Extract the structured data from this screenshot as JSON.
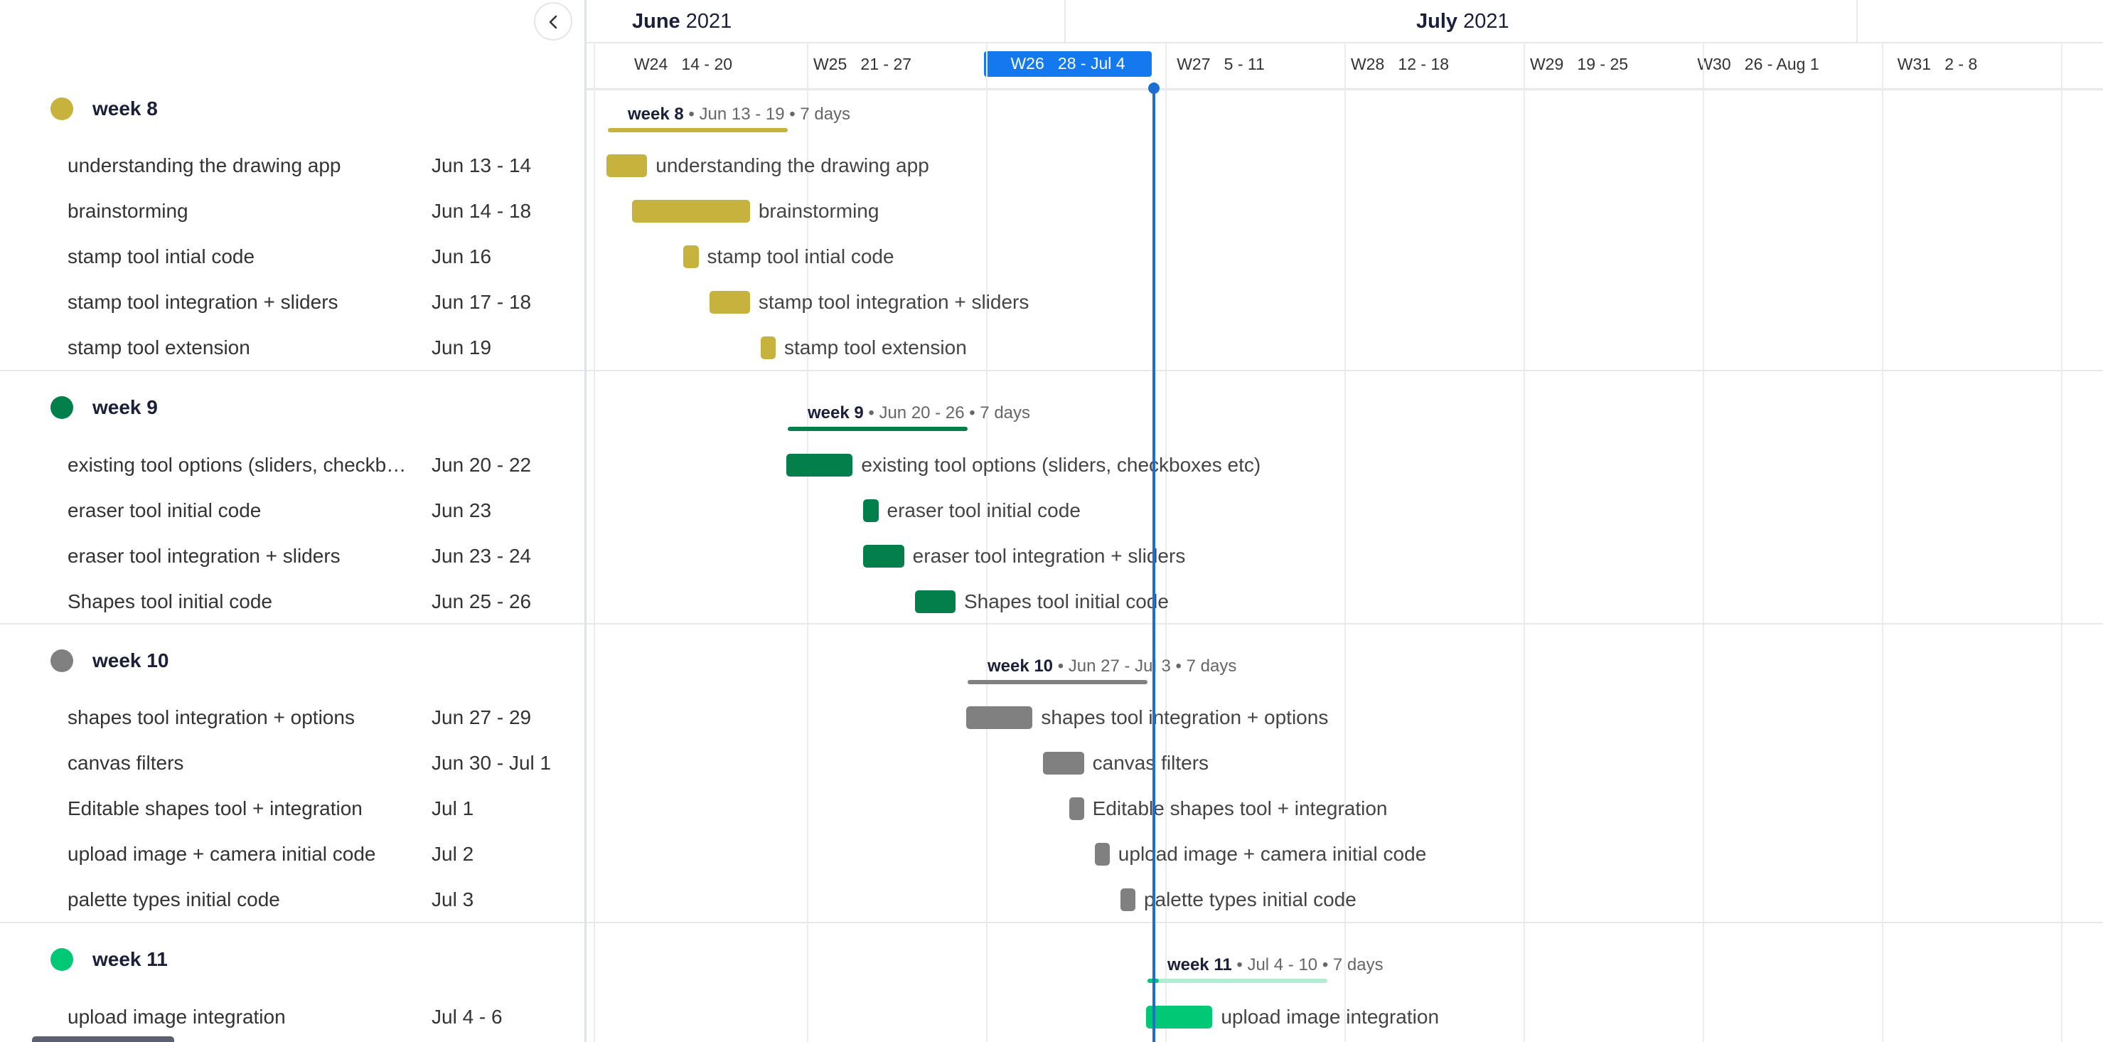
{
  "colors": {
    "week8": "#c8b23e",
    "week9": "#037f4c",
    "week10": "#808080",
    "week11": "#00c875",
    "week11_light": "#b3ecd4",
    "today": "#1a6fd4",
    "current_week": "#1479ee"
  },
  "icons": {
    "collapse": "chevron-left-icon"
  },
  "timeline": {
    "months": [
      {
        "name": "June",
        "year": "2021"
      },
      {
        "name": "July",
        "year": "2021"
      }
    ],
    "weeks": [
      {
        "num": "W24",
        "range": "14 - 20"
      },
      {
        "num": "W25",
        "range": "21 - 27"
      },
      {
        "num": "W26",
        "range": "28 - Jul 4",
        "current": true
      },
      {
        "num": "W27",
        "range": "5 - 11"
      },
      {
        "num": "W28",
        "range": "12 - 18"
      },
      {
        "num": "W29",
        "range": "19 - 25"
      },
      {
        "num": "W30",
        "range": "26 - Aug 1"
      },
      {
        "num": "W31",
        "range": "2 - 8"
      }
    ]
  },
  "groups": [
    {
      "name": "week 8",
      "summary": {
        "range": "Jun 13 - 19",
        "duration": "7 days"
      },
      "tasks": [
        {
          "name": "understanding the drawing app",
          "dates": "Jun 13 - 14"
        },
        {
          "name": "brainstorming",
          "dates": "Jun 14 - 18"
        },
        {
          "name": "stamp tool intial code",
          "dates": "Jun 16"
        },
        {
          "name": "stamp tool integration + sliders",
          "dates": "Jun 17 - 18"
        },
        {
          "name": "stamp tool extension",
          "dates": "Jun 19"
        }
      ]
    },
    {
      "name": "week 9",
      "summary": {
        "range": "Jun 20 - 26",
        "duration": "7 days"
      },
      "tasks": [
        {
          "name": "existing tool options (sliders, checkboxes etc)",
          "dates": "Jun 20 - 22"
        },
        {
          "name": "eraser tool initial code",
          "dates": "Jun 23"
        },
        {
          "name": "eraser tool integration + sliders",
          "dates": "Jun 23 - 24"
        },
        {
          "name": "Shapes tool initial code",
          "dates": "Jun 25 - 26"
        }
      ]
    },
    {
      "name": "week 10",
      "summary": {
        "range": "Jun 27 - Jul 3",
        "duration": "7 days"
      },
      "tasks": [
        {
          "name": "shapes tool integration + options",
          "dates": "Jun 27 - 29"
        },
        {
          "name": "canvas filters",
          "dates": "Jun 30 - Jul 1"
        },
        {
          "name": "Editable shapes tool + integration",
          "dates": "Jul 1"
        },
        {
          "name": "upload image + camera initial code",
          "dates": "Jul 2"
        },
        {
          "name": "palette types initial code",
          "dates": "Jul 3"
        }
      ]
    },
    {
      "name": "week 11",
      "summary": {
        "range": "Jul 4 - 10",
        "duration": "7 days"
      },
      "tasks": [
        {
          "name": "upload image integration",
          "dates": "Jul 4 - 6"
        }
      ]
    }
  ]
}
